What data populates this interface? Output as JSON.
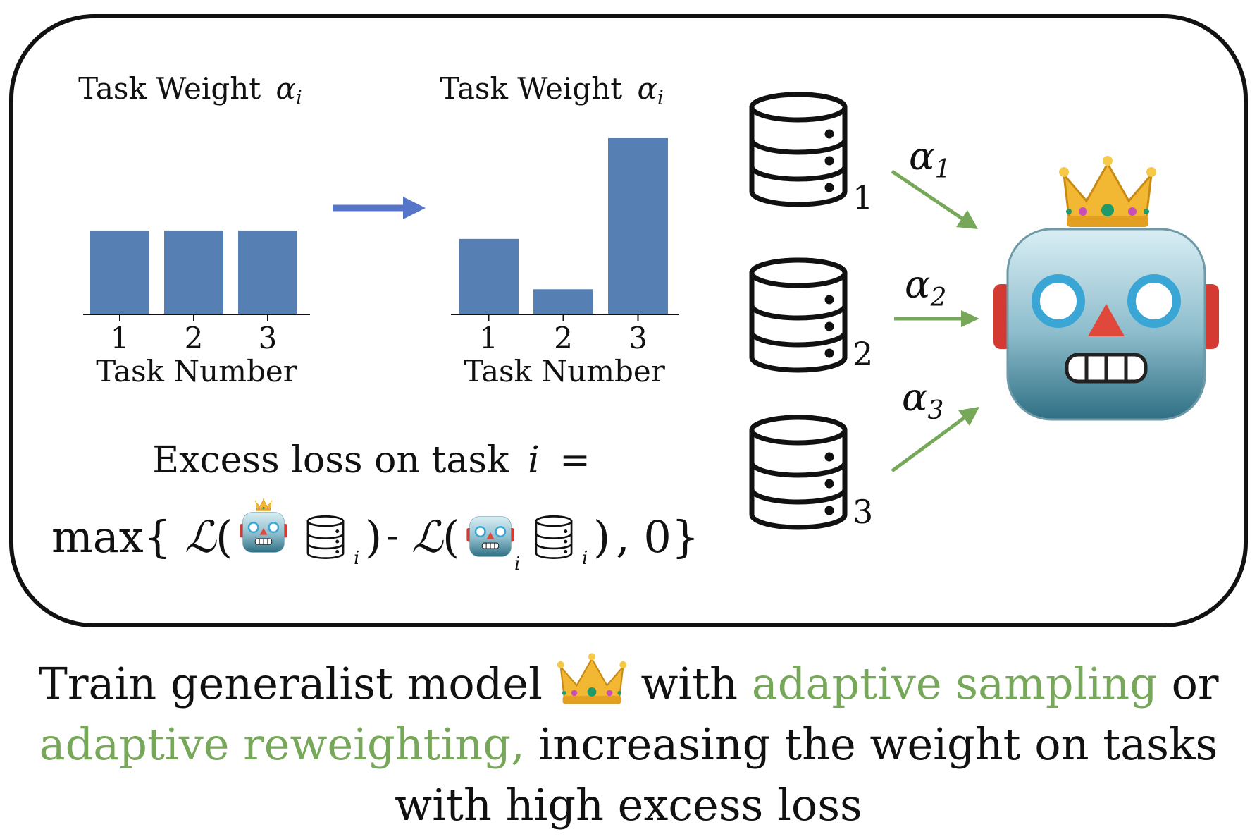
{
  "charts": [
    {
      "type": "bar",
      "title": "Task Weight",
      "title_symbol": "α",
      "title_sub": "i",
      "xlabel": "Task Number",
      "categories": [
        "1",
        "2",
        "3"
      ],
      "values": [
        1.0,
        1.0,
        1.0
      ],
      "ylim": [
        0,
        2.15
      ],
      "bar_color": "#5680b4"
    },
    {
      "type": "bar",
      "title": "Task Weight",
      "title_symbol": "α",
      "title_sub": "i",
      "xlabel": "Task Number",
      "categories": [
        "1",
        "2",
        "3"
      ],
      "values": [
        0.9,
        0.3,
        2.1
      ],
      "ylim": [
        0,
        2.15
      ],
      "bar_color": "#5680b4"
    }
  ],
  "transition_arrow_color": "#5575c8",
  "databases": [
    {
      "label": "1",
      "weight_symbol": "α",
      "weight_sub": "1"
    },
    {
      "label": "2",
      "weight_symbol": "α",
      "weight_sub": "2"
    },
    {
      "label": "3",
      "weight_symbol": "α",
      "weight_sub": "3"
    }
  ],
  "arrow_color": "#77a85a",
  "model": {
    "icon": "crowned-robot-icon",
    "crown_color": "#f2b733",
    "face_color": "#4f8fa4"
  },
  "formula": {
    "line1_text": "Excess loss on task",
    "line1_var": "i",
    "line1_eq": "=",
    "max": "max{",
    "loss_symbol": "ℒ",
    "open_paren": "(",
    "close_paren": ")",
    "minus": "-",
    "sub_i": "i",
    "comma_zero": ", 0}"
  },
  "caption": {
    "part1": "Train generalist model",
    "part2": "with",
    "green1": "adaptive sampling",
    "part3": "or",
    "green2": "adaptive reweighting,",
    "part4": "increasing the weight on tasks",
    "line3": "with high excess loss"
  },
  "accent_green": "#77a85a"
}
